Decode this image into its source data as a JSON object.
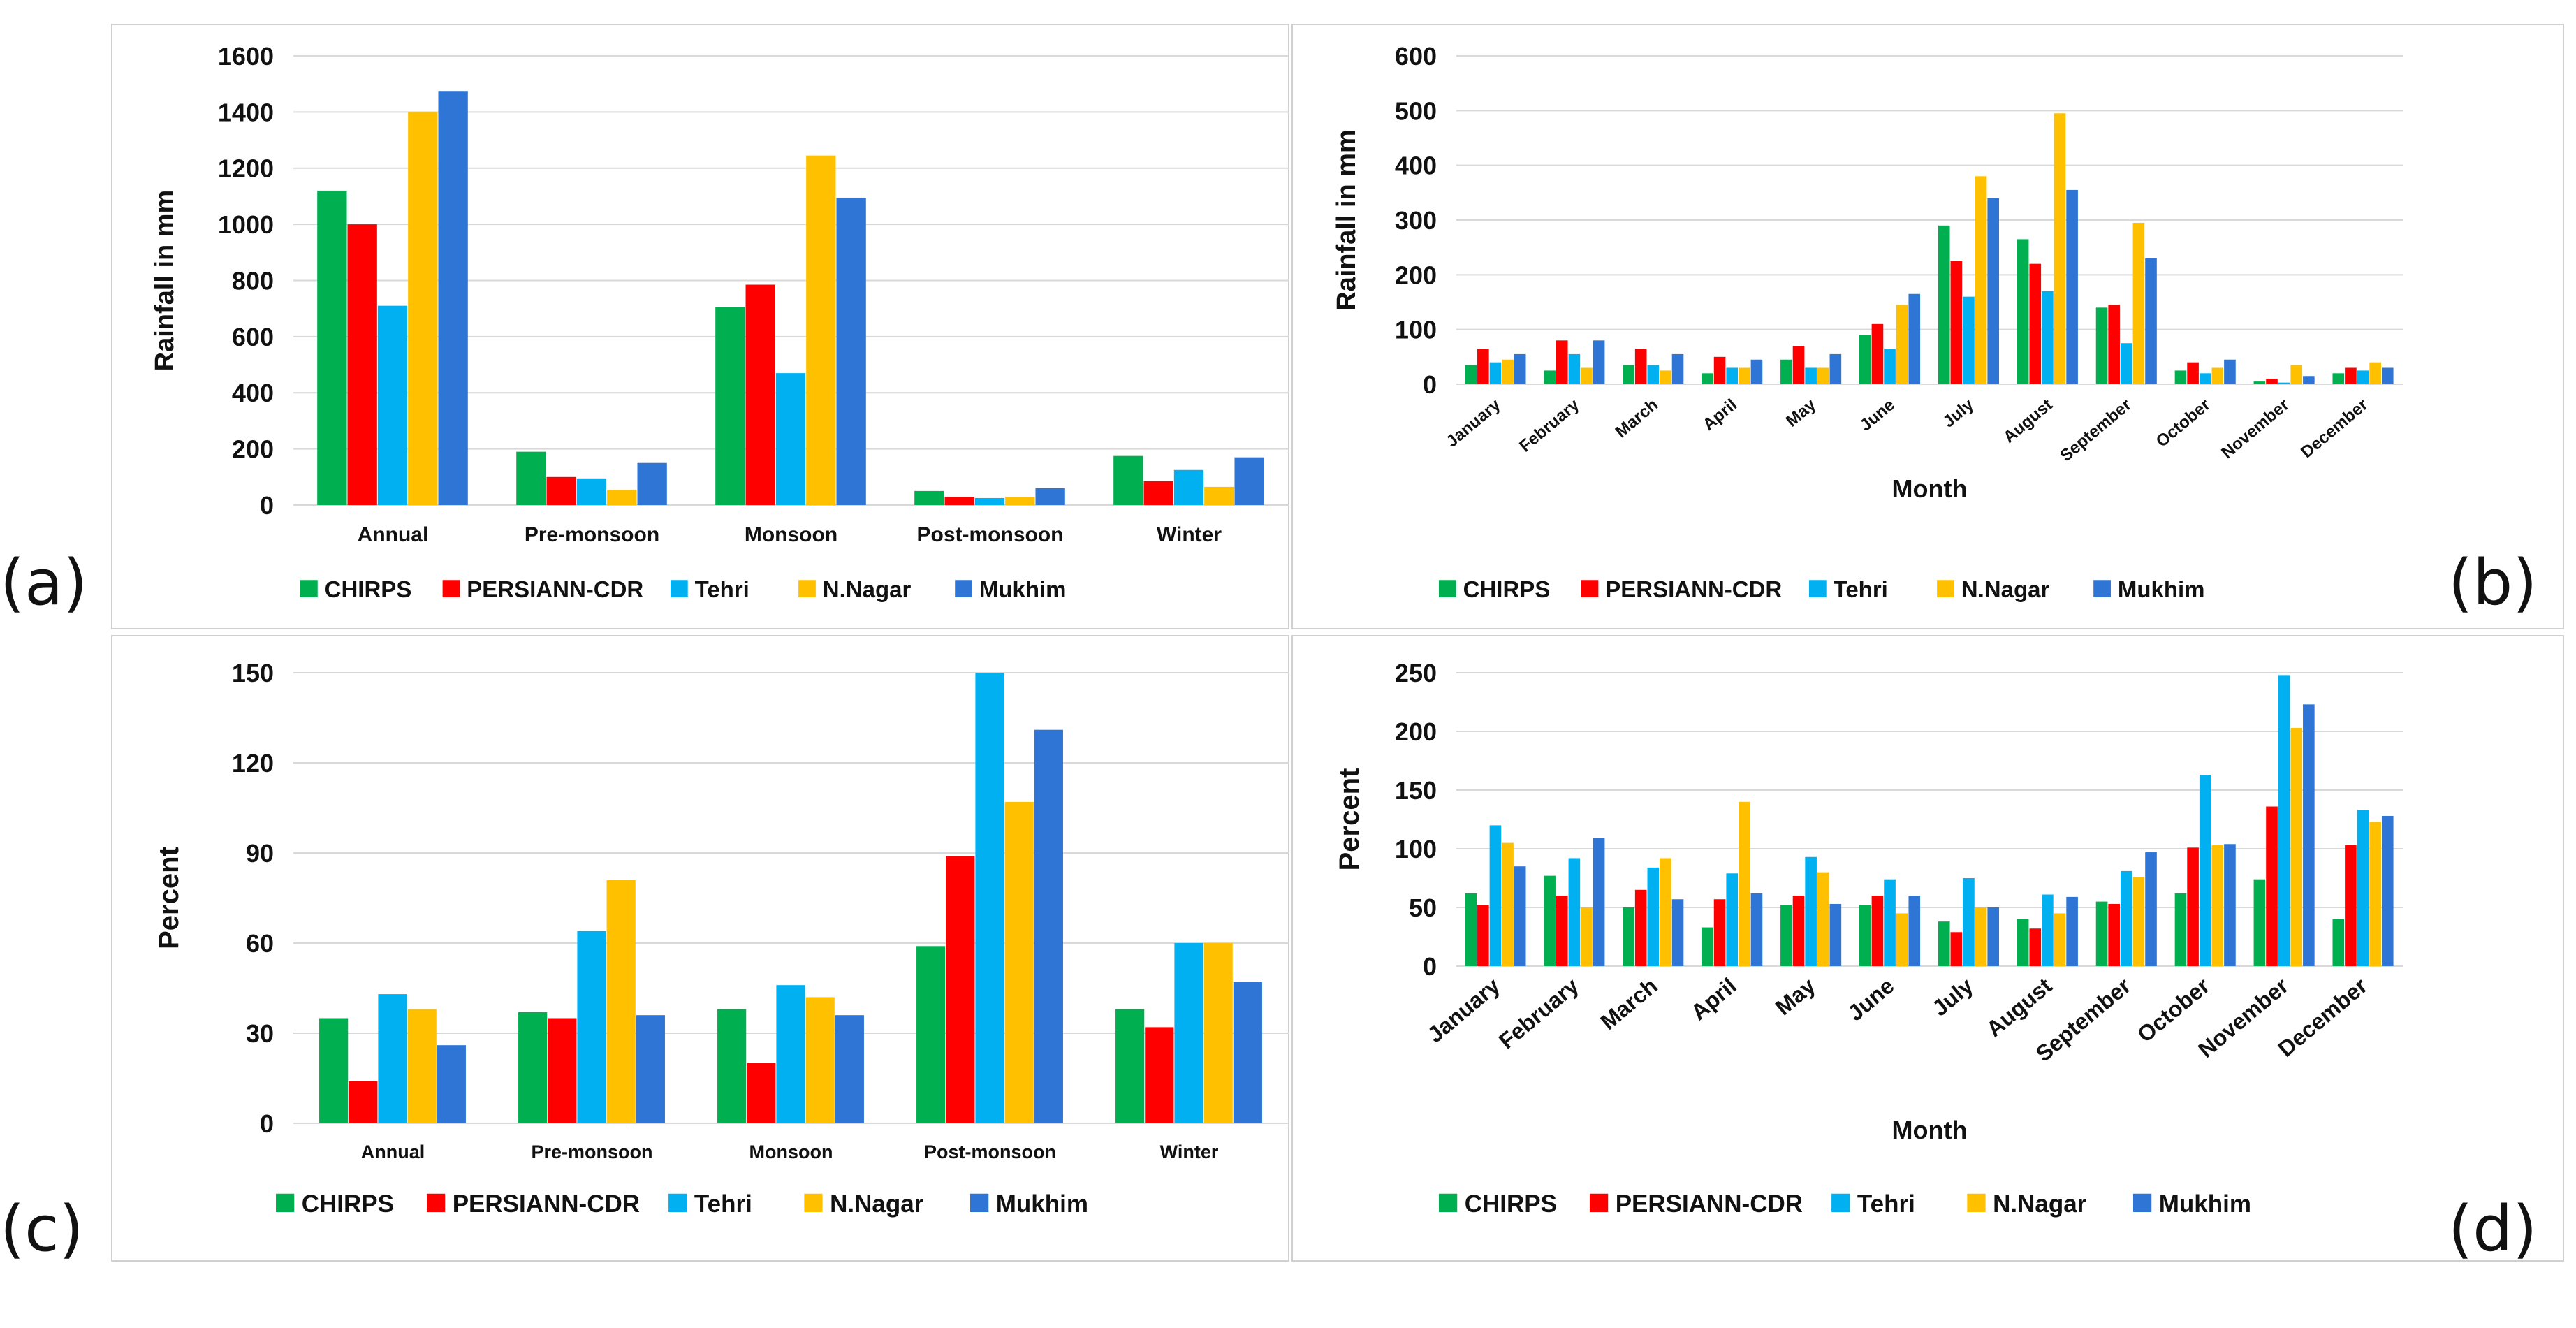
{
  "colors": {
    "CHIRPS": "#00b050",
    "PERSIANN-CDR": "#ff0000",
    "Tehri": "#00b0f0",
    "N.Nagar": "#ffc000",
    "Mukhim": "#2e75d6",
    "grid": "#d9d9d9",
    "frame": "#d0d0d0"
  },
  "chart_data": [
    {
      "panel": "(a)",
      "type": "bar",
      "xlabel": "",
      "ylabel": "Rainfall in mm",
      "ylim": [
        0,
        1600
      ],
      "yticks": [
        0,
        200,
        400,
        600,
        800,
        1000,
        1200,
        1400,
        1600
      ],
      "categories": [
        "Annual",
        "Pre-monsoon",
        "Monsoon",
        "Post-monsoon",
        "Winter"
      ],
      "series": [
        {
          "name": "CHIRPS",
          "values": [
            1120,
            190,
            705,
            50,
            175
          ]
        },
        {
          "name": "PERSIANN-CDR",
          "values": [
            1000,
            100,
            785,
            30,
            85
          ]
        },
        {
          "name": "Tehri",
          "values": [
            710,
            95,
            470,
            25,
            125
          ]
        },
        {
          "name": "N.Nagar",
          "values": [
            1400,
            55,
            1245,
            30,
            65
          ]
        },
        {
          "name": "Mukhim",
          "values": [
            1475,
            150,
            1095,
            60,
            170
          ]
        }
      ],
      "legend": [
        "CHIRPS",
        "PERSIANN-CDR",
        "Tehri",
        "N.Nagar",
        "Mukhim"
      ]
    },
    {
      "panel": "(b)",
      "type": "bar",
      "xlabel": "Month",
      "ylabel": "Rainfall in mm",
      "ylim": [
        0,
        600
      ],
      "yticks": [
        0,
        100,
        200,
        300,
        400,
        500,
        600
      ],
      "categories": [
        "January",
        "February",
        "March",
        "April",
        "May",
        "June",
        "July",
        "August",
        "September",
        "October",
        "November",
        "December"
      ],
      "series": [
        {
          "name": "CHIRPS",
          "values": [
            35,
            25,
            35,
            20,
            45,
            90,
            290,
            265,
            140,
            25,
            5,
            20
          ]
        },
        {
          "name": "PERSIANN-CDR",
          "values": [
            65,
            80,
            65,
            50,
            70,
            110,
            225,
            220,
            145,
            40,
            10,
            30
          ]
        },
        {
          "name": "Tehri",
          "values": [
            40,
            55,
            35,
            30,
            30,
            65,
            160,
            170,
            75,
            20,
            3,
            25
          ]
        },
        {
          "name": "N.Nagar",
          "values": [
            45,
            30,
            25,
            30,
            30,
            145,
            380,
            495,
            295,
            30,
            35,
            40
          ]
        },
        {
          "name": "Mukhim",
          "values": [
            55,
            80,
            55,
            45,
            55,
            165,
            340,
            355,
            230,
            45,
            15,
            30
          ]
        }
      ],
      "legend": [
        "CHIRPS",
        "PERSIANN-CDR",
        "Tehri",
        "N.Nagar",
        "Mukhim"
      ]
    },
    {
      "panel": "(c)",
      "type": "bar",
      "xlabel": "",
      "ylabel": "Percent",
      "ylim": [
        0,
        150
      ],
      "yticks": [
        0,
        30,
        60,
        90,
        120,
        150
      ],
      "categories": [
        "Annual",
        "Pre-monsoon",
        "Monsoon",
        "Post-monsoon",
        "Winter"
      ],
      "series": [
        {
          "name": "CHIRPS",
          "values": [
            35,
            37,
            38,
            59,
            38
          ]
        },
        {
          "name": "PERSIANN-CDR",
          "values": [
            14,
            35,
            20,
            89,
            32
          ]
        },
        {
          "name": "Tehri",
          "values": [
            43,
            64,
            46,
            150,
            60
          ]
        },
        {
          "name": "N.Nagar",
          "values": [
            38,
            81,
            42,
            107,
            60
          ]
        },
        {
          "name": "Mukhim",
          "values": [
            26,
            36,
            36,
            131,
            47
          ]
        }
      ],
      "legend": [
        "CHIRPS",
        "PERSIANN-CDR",
        "Tehri",
        "N.Nagar",
        "Mukhim"
      ]
    },
    {
      "panel": "(d)",
      "type": "bar",
      "xlabel": "Month",
      "ylabel": "Percent",
      "ylim": [
        0,
        250
      ],
      "yticks": [
        0,
        50,
        100,
        150,
        200,
        250
      ],
      "categories": [
        "January",
        "February",
        "March",
        "April",
        "May",
        "June",
        "July",
        "August",
        "September",
        "October",
        "November",
        "December"
      ],
      "series": [
        {
          "name": "CHIRPS",
          "values": [
            62,
            77,
            50,
            33,
            52,
            52,
            38,
            40,
            55,
            62,
            74,
            40
          ]
        },
        {
          "name": "PERSIANN-CDR",
          "values": [
            52,
            60,
            65,
            57,
            60,
            60,
            29,
            32,
            53,
            101,
            136,
            103
          ]
        },
        {
          "name": "Tehri",
          "values": [
            120,
            92,
            84,
            79,
            93,
            74,
            75,
            61,
            81,
            163,
            248,
            133
          ]
        },
        {
          "name": "N.Nagar",
          "values": [
            105,
            50,
            92,
            140,
            80,
            45,
            50,
            45,
            76,
            103,
            203,
            123
          ]
        },
        {
          "name": "Mukhim",
          "values": [
            85,
            109,
            57,
            62,
            53,
            60,
            50,
            59,
            97,
            104,
            223,
            128
          ]
        }
      ],
      "legend": [
        "CHIRPS",
        "PERSIANN-CDR",
        "Tehri",
        "N.Nagar",
        "Mukhim"
      ]
    }
  ]
}
